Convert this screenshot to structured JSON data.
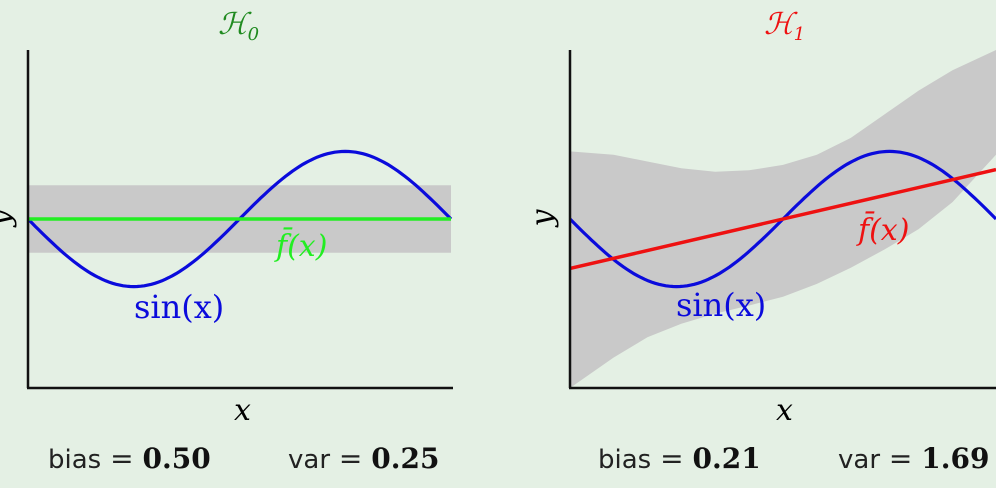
{
  "colors": {
    "background": "#e4f0e4",
    "band": "#c9c9c9",
    "sin": "#0b0bdc",
    "h0": "#1f8a1f",
    "h0_line": "#22ee22",
    "h1": "#ee1111",
    "h1_line": "#ee1111",
    "axis": "#111111"
  },
  "chart_data": [
    {
      "type": "line",
      "title": "ℋ",
      "title_sub": "0",
      "xlabel": "x",
      "ylabel": "y",
      "x_range": [
        -3.14159,
        3.14159
      ],
      "ylim": [
        -2.5,
        2.5
      ],
      "series": [
        {
          "name": "sin(x)",
          "kind": "sin"
        },
        {
          "name": "f̄(x)",
          "kind": "line",
          "slope": 0.0,
          "intercept": 0.0
        }
      ],
      "band": {
        "x": [
          -3.14159,
          3.14159
        ],
        "lower": [
          -0.5,
          -0.5
        ],
        "upper": [
          0.5,
          0.5
        ]
      },
      "stats": {
        "bias_label": "bias",
        "bias": "0.50",
        "var_label": "var",
        "var": "0.25"
      }
    },
    {
      "type": "line",
      "title": "ℋ",
      "title_sub": "1",
      "xlabel": "x",
      "ylabel": "y",
      "x_range": [
        -3.14159,
        3.14159
      ],
      "ylim": [
        -2.5,
        2.5
      ],
      "series": [
        {
          "name": "sin(x)",
          "kind": "sin"
        },
        {
          "name": "f̄(x)",
          "kind": "line",
          "slope": 0.233,
          "intercept": 0.0
        }
      ],
      "band": {
        "x": [
          -3.14159,
          -2.5,
          -2.0,
          -1.5,
          -1.0,
          -0.5,
          0.0,
          0.5,
          1.0,
          1.5,
          2.0,
          2.5,
          3.14159
        ],
        "lower": [
          -2.5,
          -2.05,
          -1.75,
          -1.55,
          -1.4,
          -1.28,
          -1.15,
          -0.96,
          -0.72,
          -0.45,
          -0.15,
          0.25,
          0.95
        ],
        "upper": [
          1.0,
          0.95,
          0.85,
          0.75,
          0.7,
          0.72,
          0.8,
          0.95,
          1.2,
          1.55,
          1.9,
          2.2,
          2.5
        ]
      },
      "stats": {
        "bias_label": "bias",
        "bias": "0.21",
        "var_label": "var",
        "var": "1.69"
      }
    }
  ]
}
